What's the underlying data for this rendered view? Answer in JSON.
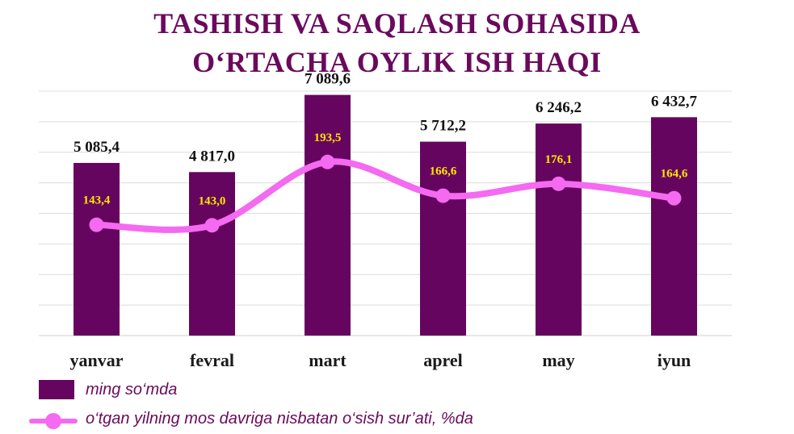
{
  "title": {
    "line1": "TASHISH VA SAQLASH SOHASIDA",
    "line2": "O‘RTACHA OYLIK ISH HAQI"
  },
  "legend": {
    "bar_label": "ming so‘mda",
    "line_label": "o‘tgan yilning mos davriga nisbatan o‘sish sur’ati, %da"
  },
  "chart_data": {
    "type": "bar",
    "categories": [
      "yanvar",
      "fevral",
      "mart",
      "aprel",
      "may",
      "iyun"
    ],
    "series": [
      {
        "name": "ming so‘mda",
        "type": "bar",
        "values": [
          5085.4,
          4817.0,
          7089.6,
          5712.2,
          6246.2,
          6432.7
        ],
        "labels": [
          "5 085,4",
          "4 817,0",
          "7 089,6",
          "5 712,2",
          "6 246,2",
          "6 432,7"
        ],
        "color": "#66055f"
      },
      {
        "name": "o‘tgan yilning mos davriga nisbatan o‘sish sur’ati, %da",
        "type": "line",
        "values": [
          143.4,
          143.0,
          193.5,
          166.6,
          176.1,
          164.6
        ],
        "labels": [
          "143,4",
          "143,0",
          "193,5",
          "166,6",
          "176,1",
          "164,6"
        ],
        "color": "#f46af0",
        "label_color": "#ffe500"
      }
    ],
    "ylim": [
      0,
      7200
    ],
    "line_ylim": [
      55,
      250
    ],
    "grid": true,
    "legend_position": "bottom-left",
    "title": "TASHISH VA SAQLASH SOHASIDA O‘RTACHA OYLIK ISH HAQI"
  }
}
